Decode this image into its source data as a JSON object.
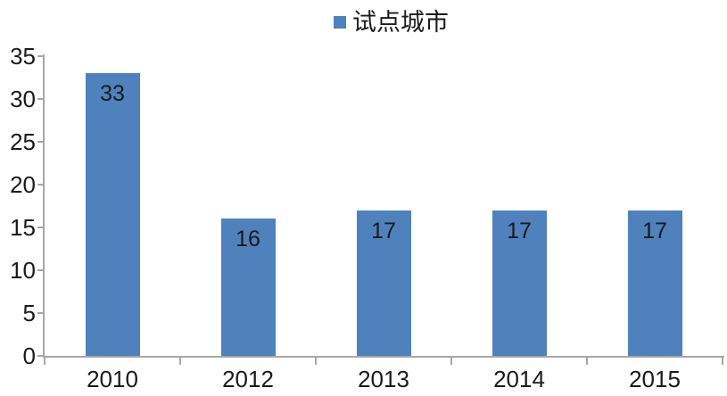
{
  "chart_data": {
    "type": "bar",
    "title": "",
    "series_name": "试点城市",
    "categories": [
      "2010",
      "2012",
      "2013",
      "2014",
      "2015"
    ],
    "values": [
      33,
      16,
      17,
      17,
      17
    ],
    "xlabel": "",
    "ylabel": "",
    "ylim": [
      0,
      35
    ],
    "ytick_step": 5,
    "yticks": [
      0,
      5,
      10,
      15,
      20,
      25,
      30,
      35
    ],
    "grid": false,
    "legend_position": "top-center",
    "data_label_position": "inside-top",
    "colors": {
      "bar": "#4F81BD",
      "axis": "#A6A6A6",
      "text": "#1A1A1A",
      "background": "#FFFFFF"
    }
  }
}
